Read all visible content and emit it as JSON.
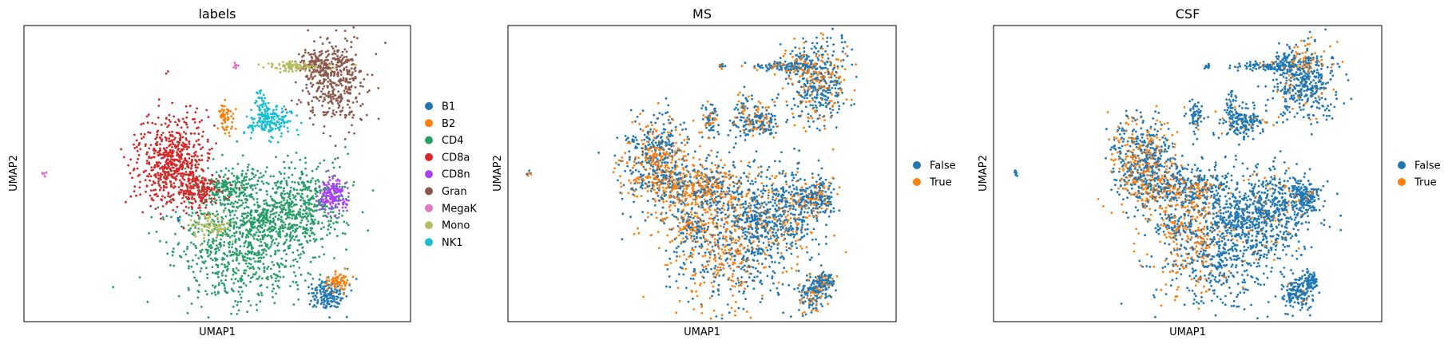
{
  "chart_data": [
    {
      "type": "scatter",
      "title": "labels",
      "xlabel": "UMAP1",
      "ylabel": "UMAP2",
      "grid": false,
      "legend_placement": "right outside",
      "series": [
        {
          "name": "B1",
          "color": "#1f77b4"
        },
        {
          "name": "B2",
          "color": "#ff7f0e"
        },
        {
          "name": "CD4",
          "color": "#279e68"
        },
        {
          "name": "CD8a",
          "color": "#d62728"
        },
        {
          "name": "CD8n",
          "color": "#aa40fc"
        },
        {
          "name": "Gran",
          "color": "#8c564b"
        },
        {
          "name": "MegaK",
          "color": "#e377c2"
        },
        {
          "name": "Mono",
          "color": "#b5bd61"
        },
        {
          "name": "NK1",
          "color": "#17becf"
        }
      ]
    },
    {
      "type": "scatter",
      "title": "MS",
      "xlabel": "UMAP1",
      "ylabel": "UMAP2",
      "grid": false,
      "legend_placement": "right outside",
      "series": [
        {
          "name": "False",
          "color": "#1f77b4"
        },
        {
          "name": "True",
          "color": "#ff7f0e"
        }
      ]
    },
    {
      "type": "scatter",
      "title": "CSF",
      "xlabel": "UMAP1",
      "ylabel": "UMAP2",
      "grid": false,
      "legend_placement": "right outside",
      "series": [
        {
          "name": "False",
          "color": "#1f77b4"
        },
        {
          "name": "True",
          "color": "#ff7f0e"
        }
      ]
    }
  ]
}
